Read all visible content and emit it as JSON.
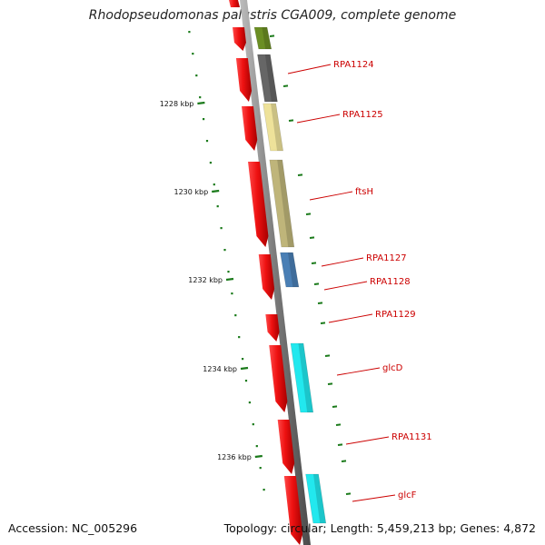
{
  "title": "Rhodopseudomonas palustris CGA009, complete genome",
  "accession_label": "Accession: NC_005296",
  "summary_label": "Topology: circular; Length: 5,459,213 bp; Genes: 4,872",
  "scale_ticks": [
    {
      "label": "1228 kbp",
      "kbp": 1228
    },
    {
      "label": "1230 kbp",
      "kbp": 1230
    },
    {
      "label": "1232 kbp",
      "kbp": 1232
    },
    {
      "label": "1234 kbp",
      "kbp": 1234
    },
    {
      "label": "1236 kbp",
      "kbp": 1236
    }
  ],
  "genes": [
    {
      "name": "RPA1124",
      "color": "#666666"
    },
    {
      "name": "RPA1125",
      "color": "#eee29a"
    },
    {
      "name": "ftsH",
      "color": "#bfb57a"
    },
    {
      "name": "RPA1127",
      "color": "#4a7fb5"
    },
    {
      "name": "RPA1128",
      "color": ""
    },
    {
      "name": "RPA1129",
      "color": ""
    },
    {
      "name": "glcD",
      "color": "#22e8ee"
    },
    {
      "name": "RPA1131",
      "color": ""
    },
    {
      "name": "glcF",
      "color": "#22e8ee"
    }
  ],
  "colors": {
    "strand_arrow": "#ee1111",
    "backbone": "#8a8a8a",
    "tick_green": "#1a7a1a",
    "label_red": "#cc0000",
    "top_partial_gene": "#6b8e23"
  }
}
